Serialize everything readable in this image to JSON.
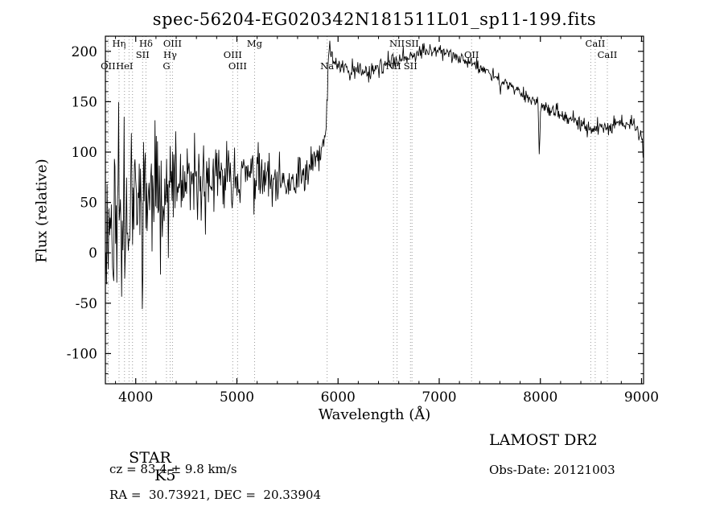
{
  "chart_data": {
    "type": "line",
    "title": "spec-56204-EG020342N181511L01_sp11-199.fits",
    "xlabel": "Wavelength (Å)",
    "ylabel": "Flux (relative)",
    "xlim": [
      3700,
      9020
    ],
    "ylim": [
      -130,
      215
    ],
    "xticks": [
      4000,
      5000,
      6000,
      7000,
      8000,
      9000
    ],
    "xtick_minor_step": 200,
    "yticks": [
      -100,
      -50,
      0,
      50,
      100,
      150,
      200
    ],
    "ytick_minor_step": 10,
    "grid": false,
    "legend": "none",
    "frame_color": "#000000",
    "marker_line_color": "#9a9a9a",
    "marker_label_color": "#111111",
    "series": [
      {
        "name": "spectrum",
        "color": "#000000",
        "sample_step": 6,
        "x_range": [
          3705,
          9015
        ],
        "seed": 11,
        "continuum": [
          [
            3705,
            25
          ],
          [
            3750,
            32
          ],
          [
            3790,
            42
          ],
          [
            3850,
            46
          ],
          [
            3950,
            52
          ],
          [
            4050,
            56
          ],
          [
            4200,
            62
          ],
          [
            4350,
            64
          ],
          [
            4500,
            66
          ],
          [
            4650,
            69
          ],
          [
            4800,
            72
          ],
          [
            4950,
            76
          ],
          [
            5100,
            78
          ],
          [
            5250,
            73
          ],
          [
            5400,
            63
          ],
          [
            5550,
            68
          ],
          [
            5700,
            80
          ],
          [
            5800,
            95
          ],
          [
            5860,
            106
          ],
          [
            5885,
            130
          ],
          [
            5900,
            178
          ],
          [
            5915,
            205
          ],
          [
            5935,
            196
          ],
          [
            5970,
            188
          ],
          [
            6050,
            184
          ],
          [
            6150,
            181
          ],
          [
            6300,
            180
          ],
          [
            6450,
            186
          ],
          [
            6600,
            192
          ],
          [
            6750,
            197
          ],
          [
            6900,
            200
          ],
          [
            6990,
            203
          ],
          [
            7080,
            198
          ],
          [
            7200,
            193
          ],
          [
            7350,
            187
          ],
          [
            7500,
            179
          ],
          [
            7650,
            169
          ],
          [
            7800,
            159
          ],
          [
            7950,
            151
          ],
          [
            8050,
            144
          ],
          [
            8200,
            137
          ],
          [
            8350,
            129
          ],
          [
            8500,
            123
          ],
          [
            8650,
            125
          ],
          [
            8800,
            128
          ],
          [
            8950,
            126
          ],
          [
            9000,
            118
          ],
          [
            9015,
            102
          ]
        ],
        "noise_amplitude": [
          [
            3705,
            55
          ],
          [
            3750,
            62
          ],
          [
            3800,
            85
          ],
          [
            3900,
            85
          ],
          [
            4000,
            62
          ],
          [
            4150,
            55
          ],
          [
            4300,
            40
          ],
          [
            4500,
            31
          ],
          [
            4800,
            26
          ],
          [
            5100,
            22
          ],
          [
            5400,
            20
          ],
          [
            5700,
            16
          ],
          [
            5850,
            13
          ],
          [
            5950,
            10
          ],
          [
            6100,
            8
          ],
          [
            6400,
            7
          ],
          [
            6800,
            6
          ],
          [
            7200,
            5
          ],
          [
            7600,
            5
          ],
          [
            8000,
            5
          ],
          [
            8400,
            6
          ],
          [
            8800,
            6
          ],
          [
            9015,
            7
          ]
        ],
        "absorption_features": [
          {
            "x": 7990,
            "depth": 50,
            "width": 8
          },
          {
            "x": 7605,
            "depth": 16,
            "width": 9
          }
        ]
      }
    ],
    "markers": [
      {
        "label": "Hη",
        "wavelength": 3835,
        "row": 0
      },
      {
        "label": "Hδ",
        "wavelength": 4101,
        "row": 0
      },
      {
        "label": "OIII",
        "wavelength": 4363,
        "row": 0
      },
      {
        "label": "Mg",
        "wavelength": 5175,
        "row": 0
      },
      {
        "label": "NII",
        "wavelength": 6583,
        "row": 0
      },
      {
        "label": "SII",
        "wavelength": 6731,
        "row": 0
      },
      {
        "label": "CaII",
        "wavelength": 8542,
        "row": 0
      },
      {
        "label": "",
        "wavelength": 8498,
        "row": 0
      },
      {
        "label": "",
        "wavelength": 3934,
        "row": 0
      },
      {
        "label": "",
        "wavelength": 3968,
        "row": 0
      },
      {
        "label": "SII",
        "wavelength": 4068,
        "row": 1
      },
      {
        "label": "Hγ",
        "wavelength": 4340,
        "row": 1
      },
      {
        "label": "OIII",
        "wavelength": 4959,
        "row": 1
      },
      {
        "label": "OII",
        "wavelength": 7320,
        "row": 1
      },
      {
        "label": "CaII",
        "wavelength": 8662,
        "row": 1
      },
      {
        "label": "OII",
        "wavelength": 3727,
        "row": 2
      },
      {
        "label": "HeI",
        "wavelength": 3889,
        "row": 2
      },
      {
        "label": "G",
        "wavelength": 4304,
        "row": 2
      },
      {
        "label": "OIII",
        "wavelength": 5007,
        "row": 2
      },
      {
        "label": "Na",
        "wavelength": 5892,
        "row": 2
      },
      {
        "label": "NII",
        "wavelength": 6548,
        "row": 2
      },
      {
        "label": "SII",
        "wavelength": 6716,
        "row": 2
      }
    ]
  },
  "footer": {
    "class_type": "STAR",
    "subclass": "K5",
    "survey": "LAMOST DR2",
    "cz": "cz = 83.4 ± 9.8 km/s",
    "obs_date": "Obs-Date: 20121003",
    "ra_dec": "RA =  30.73921, DEC =  20.33904"
  }
}
